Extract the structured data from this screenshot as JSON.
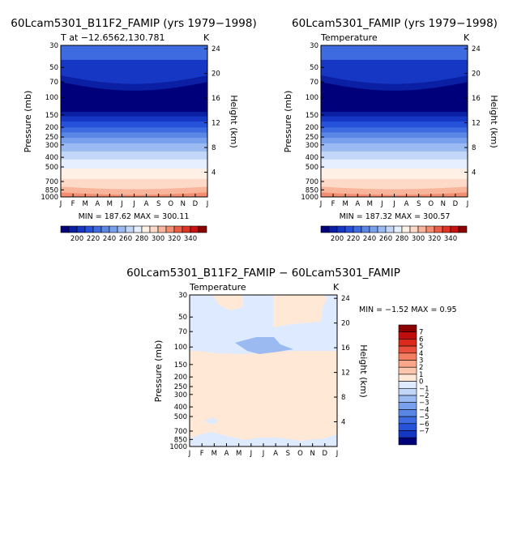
{
  "months": [
    "J",
    "F",
    "M",
    "A",
    "M",
    "J",
    "J",
    "A",
    "S",
    "O",
    "N",
    "D",
    "J"
  ],
  "pressure_ticks": [
    "30",
    "50",
    "70",
    "100",
    "150",
    "200",
    "250",
    "300",
    "400",
    "500",
    "700",
    "850",
    "1000"
  ],
  "height_ticks": [
    "4",
    "8",
    "12",
    "16",
    "20",
    "24"
  ],
  "colors": {
    "temperature_levels": [
      "#00007a",
      "#0a1fa3",
      "#1537c4",
      "#2652d9",
      "#3f6be0",
      "#5a86e6",
      "#78a0ec",
      "#9bbaf2",
      "#c2d6f7",
      "#e6efff",
      "#fff0e6",
      "#fdd9c8",
      "#f9b59b",
      "#f58e70",
      "#ec5d45",
      "#df3323",
      "#c81212",
      "#8b0000"
    ],
    "difference_levels": [
      "#00007a",
      "#1537c4",
      "#2652d9",
      "#3f6be0",
      "#5a86e6",
      "#78a0ec",
      "#9bbaf2",
      "#c2d6f7",
      "#ddeaff",
      "#ffe8d6",
      "#fcc7ad",
      "#f9a68a",
      "#f37e62",
      "#e94f3a",
      "#d92a1c",
      "#c00e0e",
      "#8b0000"
    ]
  },
  "chart_data": [
    {
      "type": "heatmap",
      "title": "60Lcam5301_B11F2_FAMIP (yrs 1979−1998)",
      "subtitle": "T at −12.6562,130.781",
      "units": "K",
      "xlabel": "",
      "ylabel": "Pressure (mb)",
      "y2label": "Height (km)",
      "x": [
        "J",
        "F",
        "M",
        "A",
        "M",
        "J",
        "J",
        "A",
        "S",
        "O",
        "N",
        "D",
        "J"
      ],
      "y_pressure": [
        30,
        50,
        70,
        100,
        150,
        200,
        250,
        300,
        400,
        500,
        700,
        850,
        1000
      ],
      "y_height_km": [
        4,
        8,
        12,
        16,
        20,
        24
      ],
      "min_max_text": "MIN = 187.62  MAX = 300.11",
      "min": 187.62,
      "max": 300.11,
      "colorbar_labels": [
        "200",
        "220",
        "240",
        "260",
        "280",
        "300",
        "320",
        "340"
      ]
    },
    {
      "type": "heatmap",
      "title": "60Lcam5301_FAMIP (yrs 1979−1998)",
      "subtitle": "Temperature",
      "units": "K",
      "xlabel": "",
      "ylabel": "Pressure (mb)",
      "y2label": "Height (km)",
      "x": [
        "J",
        "F",
        "M",
        "A",
        "M",
        "J",
        "J",
        "A",
        "S",
        "O",
        "N",
        "D",
        "J"
      ],
      "y_pressure": [
        30,
        50,
        70,
        100,
        150,
        200,
        250,
        300,
        400,
        500,
        700,
        850,
        1000
      ],
      "y_height_km": [
        4,
        8,
        12,
        16,
        20,
        24
      ],
      "min_max_text": "MIN = 187.32  MAX = 300.57",
      "min": 187.32,
      "max": 300.57,
      "colorbar_labels": [
        "200",
        "220",
        "240",
        "260",
        "280",
        "300",
        "320",
        "340"
      ]
    },
    {
      "type": "heatmap",
      "title": "60Lcam5301_B11F2_FAMIP − 60Lcam5301_FAMIP",
      "subtitle": "Temperature",
      "units": "K",
      "xlabel": "",
      "ylabel": "Pressure (mb)",
      "y2label": "Height (km)",
      "x": [
        "J",
        "F",
        "M",
        "A",
        "M",
        "J",
        "J",
        "A",
        "S",
        "O",
        "N",
        "D",
        "J"
      ],
      "y_pressure": [
        30,
        50,
        70,
        100,
        150,
        200,
        250,
        300,
        400,
        500,
        700,
        850,
        1000
      ],
      "y_height_km": [
        4,
        8,
        12,
        16,
        20,
        24
      ],
      "min_max_text": "MIN =   −1.52  MAX =     0.95",
      "min": -1.52,
      "max": 0.95,
      "colorbar_labels": [
        "7",
        "6",
        "5",
        "4",
        "3",
        "2",
        "1",
        "0",
        "−1",
        "−2",
        "−3",
        "−4",
        "−5",
        "−6",
        "−7"
      ]
    }
  ]
}
